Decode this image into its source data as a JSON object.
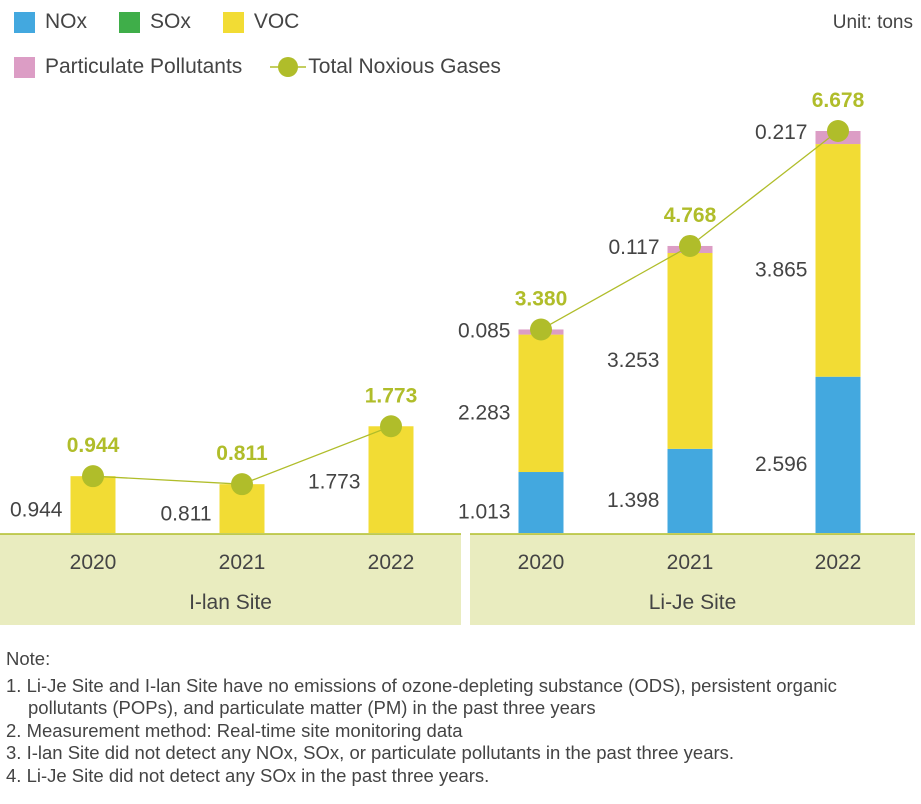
{
  "chart_data": {
    "type": "bar",
    "stacked": true,
    "unit": "Unit: tons",
    "groups": [
      {
        "name": "I-lan Site",
        "categories": [
          "2020",
          "2021",
          "2022"
        ],
        "series": {
          "NOx": [
            0,
            0,
            0
          ],
          "SOx": [
            0,
            0,
            0
          ],
          "VOC": [
            0.944,
            0.811,
            1.773
          ],
          "Particulate Pollutants": [
            0,
            0,
            0
          ]
        },
        "segment_labels": {
          "VOC": [
            "0.944",
            "0.811",
            "1.773"
          ]
        },
        "totals": [
          0.944,
          0.811,
          1.773
        ],
        "total_labels": [
          "0.944",
          "0.811",
          "1.773"
        ]
      },
      {
        "name": "Li-Je Site",
        "categories": [
          "2020",
          "2021",
          "2022"
        ],
        "series": {
          "NOx": [
            1.013,
            1.398,
            2.596
          ],
          "SOx": [
            0,
            0,
            0
          ],
          "VOC": [
            2.283,
            3.253,
            3.865
          ],
          "Particulate Pollutants": [
            0.085,
            0.117,
            0.217
          ]
        },
        "segment_labels": {
          "NOx": [
            "1.013",
            "1.398",
            "2.596"
          ],
          "VOC": [
            "2.283",
            "3.253",
            "3.865"
          ],
          "Particulate Pollutants": [
            "0.085",
            "0.117",
            "0.217"
          ]
        },
        "totals": [
          3.38,
          4.768,
          6.678
        ],
        "total_labels": [
          "3.380",
          "4.768",
          "6.678"
        ]
      }
    ],
    "legend": [
      {
        "name": "NOx",
        "color": "#43a8df"
      },
      {
        "name": "SOx",
        "color": "#3fae49"
      },
      {
        "name": "VOC",
        "color": "#f2dc34"
      },
      {
        "name": "Particulate Pollutants",
        "color": "#dc9dc5"
      },
      {
        "name": "Total Noxious Gases",
        "color": "#b0bd2a"
      }
    ],
    "legend_position": "top-left",
    "ylim": [
      0,
      7
    ],
    "grid": false
  },
  "notes": {
    "title": "Note:",
    "items": [
      "1. Li-Je Site and I-lan Site have no emissions of ozone-depleting substance (ODS), persistent organic pollutants (POPs), and particulate matter (PM) in the past three years",
      "2. Measurement method: Real-time site monitoring data",
      "3. I-lan Site did not detect any NOx, SOx, or particulate pollutants in the past three years.",
      "4. Li-Je Site did not detect any SOx in the past three years."
    ]
  }
}
